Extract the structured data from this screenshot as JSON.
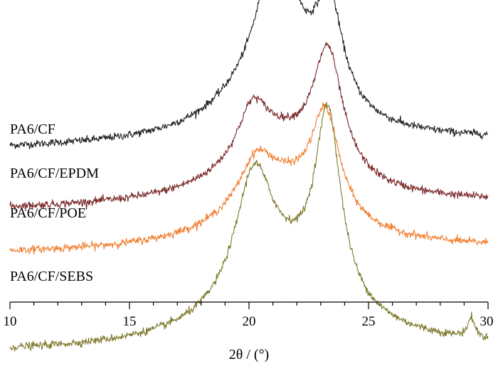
{
  "chart_data": {
    "type": "line",
    "title": "",
    "xlabel": "2θ / (°)",
    "ylabel": "",
    "xlim": [
      10,
      30
    ],
    "x_ticks": [
      10,
      15,
      20,
      25,
      30
    ],
    "x_tick_labels": [
      "10",
      "15",
      "20",
      "25",
      "30"
    ],
    "y_ticks_shown": false,
    "grid": false,
    "legend": "inline-left",
    "note": "Stacked XRD patterns, arbitrary intensity units with vertical offsets",
    "series": [
      {
        "name": "PA6/CF",
        "color": "#231f20",
        "baseline": 0.0,
        "peaks": [
          [
            21.2,
            1.2,
            0.9
          ],
          [
            23.35,
            0.95,
            0.7
          ],
          [
            21.0,
            0.6,
            2.4
          ]
        ],
        "tail": 0.05,
        "noise": 0.035
      },
      {
        "name": "PA6/CF/EPDM",
        "color": "#7b2a2a",
        "baseline": -0.55,
        "peaks": [
          [
            20.15,
            0.45,
            0.75
          ],
          [
            23.3,
            1.1,
            0.75
          ],
          [
            21.2,
            0.55,
            2.6
          ]
        ],
        "tail": 0.04,
        "noise": 0.035
      },
      {
        "name": "PA6/CF/POE",
        "color": "#f07f31",
        "baseline": -0.95,
        "peaks": [
          [
            20.3,
            0.38,
            0.85
          ],
          [
            23.2,
            0.92,
            0.72
          ],
          [
            21.3,
            0.55,
            2.6
          ]
        ],
        "tail": 0.03,
        "noise": 0.035
      },
      {
        "name": "PA6/CF/SEBS",
        "color": "#7f7a2e",
        "baseline": -1.85,
        "peaks": [
          [
            20.2,
            1.1,
            0.95
          ],
          [
            23.3,
            1.65,
            0.65
          ],
          [
            21.6,
            0.65,
            3.0
          ],
          [
            29.3,
            0.18,
            0.18
          ]
        ],
        "tail": 0.02,
        "noise": 0.035
      }
    ]
  }
}
